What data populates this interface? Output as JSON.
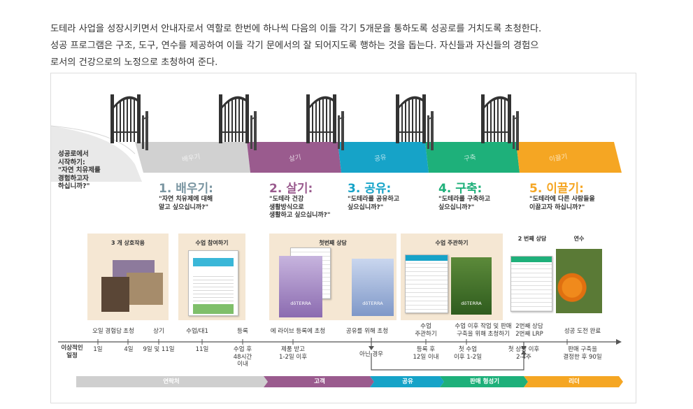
{
  "intro": {
    "line1": "도테라 사업을 성장시키면서 안내자로서 역할로 한번에 하나씩 다음의 이들 각기 5개문을 통하도록 성공로를 거치도록 초청한다.",
    "line2": "성공 프로그램은 구조, 도구, 연수를 제공하여 이들 각기 문에서의 잘 되어지도록 행하는 것을 돕는다. 자신들과 자신들의 경험으",
    "line3": "로서의 건강으로의 노정으로 초청하여 준다."
  },
  "start": {
    "line1": "성공로에서",
    "line2": "시작하기:",
    "line3": "\"자연 치유제를",
    "line4": "경험하고자",
    "line5": "하십니까?\""
  },
  "phases": [
    {
      "band": "배우기",
      "title": "1. 배우기:",
      "q1": "\"자연 치유제에 대해",
      "q2": "알고 싶으십니까?\"",
      "q3": "",
      "color": "#d1d1d1",
      "title_color": "#7b96a2"
    },
    {
      "band": "살기",
      "title": "2. 살기:",
      "q1": "\"도테라 건강",
      "q2": "생활방식으로",
      "q3": "생활하고 싶으십니까?\"",
      "color": "#9a5b8e",
      "title_color": "#9a5b8e"
    },
    {
      "band": "공유",
      "title": "3. 공유:",
      "q1": "\"도테라를 공유하고",
      "q2": "싶으십니까?\"",
      "q3": "",
      "color": "#16a3c8",
      "title_color": "#16a3c8"
    },
    {
      "band": "구축",
      "title": "4. 구축:",
      "q1": "\"도테라를 구축하고",
      "q2": "싶으십니까?\"",
      "q3": "",
      "color": "#1eb07a",
      "title_color": "#1eb07a"
    },
    {
      "band": "이끌기",
      "title": "5. 이끌기:",
      "q1": "\"도테라에 다른 사람들을",
      "q2": "이끌고자 하십니까?\"",
      "q3": "",
      "color": "#f5a623",
      "title_color": "#f5a623"
    }
  ],
  "cards": {
    "interaction": "3 개 상호작용",
    "class": "수업 참여하기",
    "first": "첫번째 상담",
    "host": "수업 주관하기",
    "second": "2 번째 상담",
    "training": "연수"
  },
  "steps_top": [
    {
      "line1": "오일 경험담",
      "line2": ""
    },
    {
      "line1": "초청",
      "line2": ""
    },
    {
      "line1": "상기",
      "line2": ""
    },
    {
      "line1": "수업/대1",
      "line2": ""
    },
    {
      "line1": "등록",
      "line2": ""
    },
    {
      "line1": "에 라이브 등록에 초청",
      "line2": ""
    },
    {
      "line1": "공유를 위해 초청",
      "line2": ""
    },
    {
      "line1": "수업",
      "line2": "주관하기"
    },
    {
      "line1": "수업 이후 작업 및 판매",
      "line2": "구축을 위해 초청하기"
    },
    {
      "line1": "2번째 상담",
      "line2": "2번째 LRP"
    },
    {
      "line1": "성공 도전 완료",
      "line2": ""
    }
  ],
  "timeline": {
    "label1": "이상적인",
    "label2": "일정",
    "ticks": [
      {
        "line1": "1일",
        "line2": "",
        "line3": ""
      },
      {
        "line1": "4일",
        "line2": "",
        "line3": ""
      },
      {
        "line1": "9일 및 11일",
        "line2": "",
        "line3": ""
      },
      {
        "line1": "11일",
        "line2": "",
        "line3": ""
      },
      {
        "line1": "수업 후",
        "line2": "48시간",
        "line3": "이내"
      },
      {
        "line1": "제품 받고",
        "line2": "1-2일 이후",
        "line3": ""
      },
      {
        "line1": "아닌 경우",
        "line2": "",
        "line3": ""
      },
      {
        "line1": "등록 후",
        "line2": "12일 이내",
        "line3": ""
      },
      {
        "line1": "첫 수업",
        "line2": "이후 1-2일",
        "line3": ""
      },
      {
        "line1": "첫 상담 이후",
        "line2": "2-4주",
        "line3": ""
      },
      {
        "line1": "판매 구축을",
        "line2": "결정한 후 90일",
        "line3": ""
      }
    ]
  },
  "stages": [
    {
      "label": "연락처",
      "color": "#cfcfcf"
    },
    {
      "label": "고객",
      "color": "#9a5b8e"
    },
    {
      "label": "공유",
      "color": "#16a3c8"
    },
    {
      "label": "판매 형성기",
      "color": "#1eb07a"
    },
    {
      "label": "리더",
      "color": "#f5a623"
    }
  ],
  "doc_text": {
    "brand": "dōTERRA",
    "a": "도테라",
    "b": "dōTERRA",
    "c": "dōTERRA"
  }
}
